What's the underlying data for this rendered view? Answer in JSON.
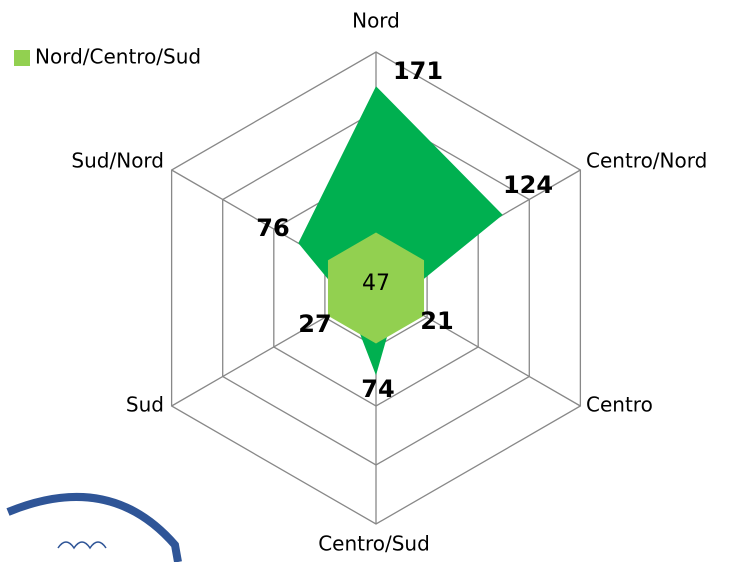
{
  "chart_data": {
    "type": "radar",
    "categories": [
      "Nord",
      "Centro/Nord",
      "Centro",
      "Centro/Sud",
      "Sud",
      "Sud/Nord"
    ],
    "series": [
      {
        "color": "#00b050",
        "values": [
          171,
          124,
          21,
          74,
          27,
          76
        ]
      },
      {
        "name": "Nord/Centro/Sud",
        "color": "#92d050",
        "values": [
          47,
          47,
          47,
          47,
          47,
          47
        ]
      }
    ],
    "ylim": [
      0,
      200
    ],
    "yticks": [
      0,
      50,
      100,
      150,
      200
    ],
    "grid": true,
    "legend": "top-left"
  }
}
